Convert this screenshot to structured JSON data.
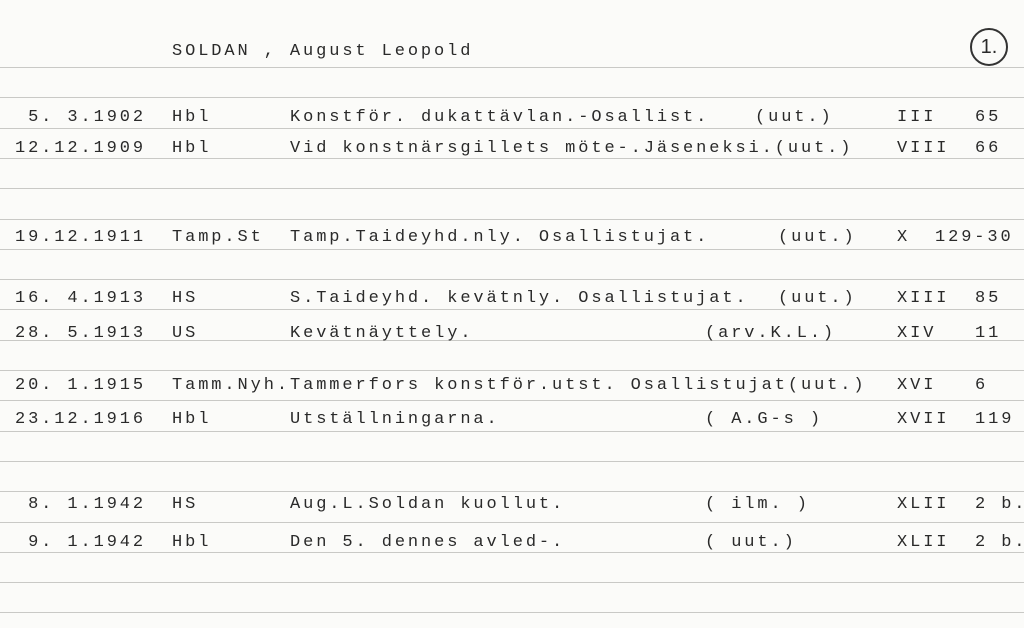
{
  "card": {
    "name": "SOLDAN , August Leopold",
    "card_number": "1.",
    "entries": [
      {
        "date": "5. 3.1902",
        "source": "Hbl",
        "description": "Konstför. dukattävlan.-Osallist.",
        "ref": "(uut.)",
        "volume": "III",
        "page": "65"
      },
      {
        "date": "12.12.1909",
        "source": "Hbl",
        "description": "Vid konstnärsgillets möte-.Jäseneksi.(uut.)",
        "ref": "",
        "volume": "VIII",
        "page": "66"
      },
      {
        "date": "19.12.1911",
        "source": "Tamp.St",
        "description": "Tamp.Taideyhd.nly. Osallistujat.",
        "ref": "(uut.)",
        "volume": "X",
        "page": "129-30"
      },
      {
        "date": "16. 4.1913",
        "source": "HS",
        "description": "S.Taideyhd. kevätnly. Osallistujat.",
        "ref": "(uut.)",
        "volume": "XIII",
        "page": "85"
      },
      {
        "date": "28. 5.1913",
        "source": "US",
        "description": "Kevätnäyttely.",
        "ref": "(arv.K.L.)",
        "volume": "XIV",
        "page": "11"
      },
      {
        "date": "20. 1.1915",
        "source": "Tamm.Nyh.",
        "description": "Tammerfors konstför.utst. Osallistujat(uut.)",
        "ref": "",
        "volume": "XVI",
        "page": "6"
      },
      {
        "date": "23.12.1916",
        "source": "Hbl",
        "description": "Utställningarna.",
        "ref": "( A.G-s )",
        "volume": "XVII",
        "page": "119"
      },
      {
        "date": "8. 1.1942",
        "source": "HS",
        "description": "Aug.L.Soldan kuollut.",
        "ref": "( ilm. )",
        "volume": "XLII",
        "page": "2 b."
      },
      {
        "date": "9. 1.1942",
        "source": "Hbl",
        "description": "Den 5. dennes avled-.",
        "ref": "( uut.)",
        "volume": "XLII",
        "page": "2 b."
      }
    ]
  }
}
